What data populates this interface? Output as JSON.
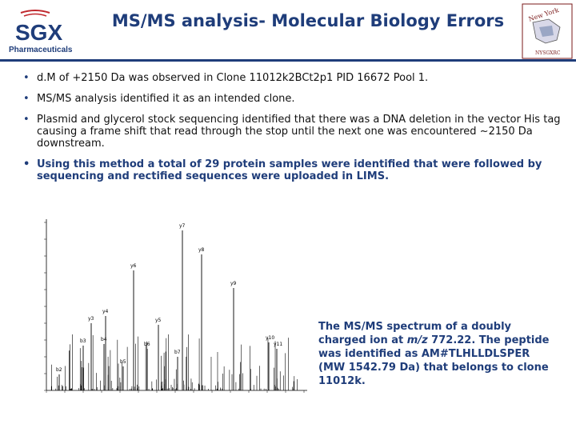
{
  "title": "MS/MS analysis- Molecular Biology Errors",
  "logo": {
    "main": "SGX",
    "sub": "Pharmaceuticals"
  },
  "ny_logo": {
    "top": "New York",
    "bottom": "NYSGXRC"
  },
  "bullets": [
    "d.M of +2150 Da was observed in Clone 11012k2BCt2p1 PID 16672 Pool 1.",
    "MS/MS analysis identified it as an intended clone.",
    "Plasmid and glycerol stock sequencing identified that there was a DNA deletion in the vector His tag causing a frame shift that read through the stop until the next one was encountered ~2150 Da downstream.",
    "Using this method a total of 29 protein samples were identified that were followed by sequencing and rectified sequences were uploaded in LIMS."
  ],
  "caption": {
    "part1": "The MS/MS spectrum of a doubly charged ion at ",
    "mz": "m/z",
    "part2": " 772.22. The peptide was identified as AM#TLHLLDLSPER (MW 1542.79 Da) that belongs to clone 11012k."
  },
  "spectrum": {
    "peak_labels": [
      "y7",
      "y8",
      "y6",
      "y9",
      "y3",
      "y4",
      "y5",
      "b3",
      "b4",
      "b6",
      "b7",
      "y10",
      "y11",
      "b2",
      "b5"
    ],
    "colors": {
      "accent": "#1f3d7a",
      "sgx_red": "#c0282d"
    }
  }
}
